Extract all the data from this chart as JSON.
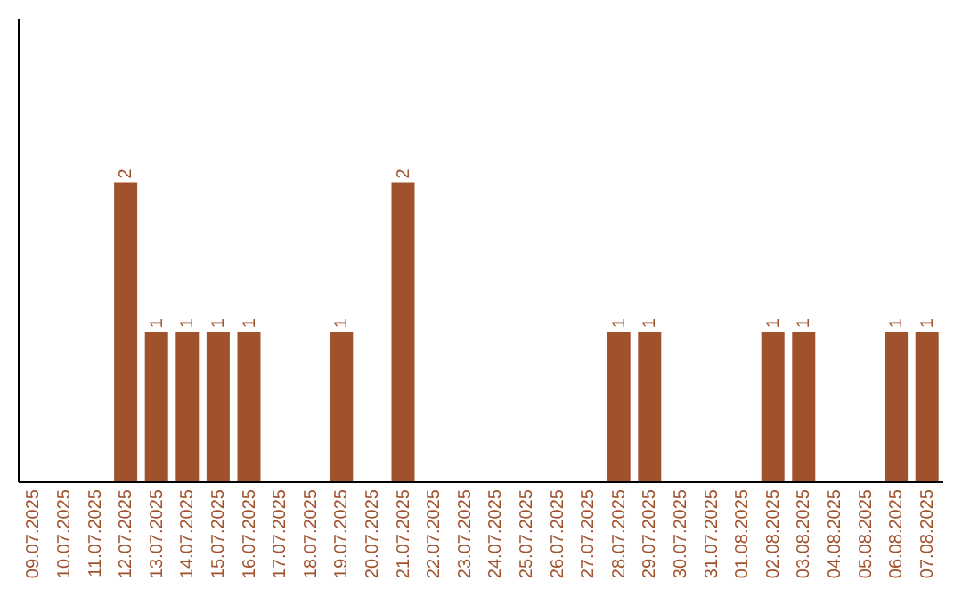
{
  "chart_data": {
    "type": "bar",
    "categories": [
      "09.07.2025",
      "10.07.2025",
      "11.07.2025",
      "12.07.2025",
      "13.07.2025",
      "14.07.2025",
      "15.07.2025",
      "16.07.2025",
      "17.07.2025",
      "18.07.2025",
      "19.07.2025",
      "20.07.2025",
      "21.07.2025",
      "22.07.2025",
      "23.07.2025",
      "24.07.2025",
      "25.07.2025",
      "26.07.2025",
      "27.07.2025",
      "28.07.2025",
      "29.07.2025",
      "30.07.2025",
      "31.07.2025",
      "01.08.2025",
      "02.08.2025",
      "03.08.2025",
      "04.08.2025",
      "05.08.2025",
      "06.08.2025",
      "07.08.2025"
    ],
    "values": [
      0,
      0,
      0,
      2,
      1,
      1,
      1,
      1,
      0,
      0,
      1,
      0,
      2,
      0,
      0,
      0,
      0,
      0,
      0,
      1,
      1,
      0,
      0,
      0,
      1,
      1,
      0,
      0,
      1,
      1
    ],
    "value_labels": [
      null,
      null,
      null,
      "2",
      "1",
      "1",
      "1",
      "1",
      null,
      null,
      "1",
      null,
      "2",
      null,
      null,
      null,
      null,
      null,
      null,
      "1",
      "1",
      null,
      null,
      null,
      "1",
      "1",
      null,
      null,
      "1",
      "1"
    ],
    "color": "#a0522d",
    "ylim": [
      0,
      3.1
    ],
    "tick_labels": "x",
    "grid": false
  }
}
